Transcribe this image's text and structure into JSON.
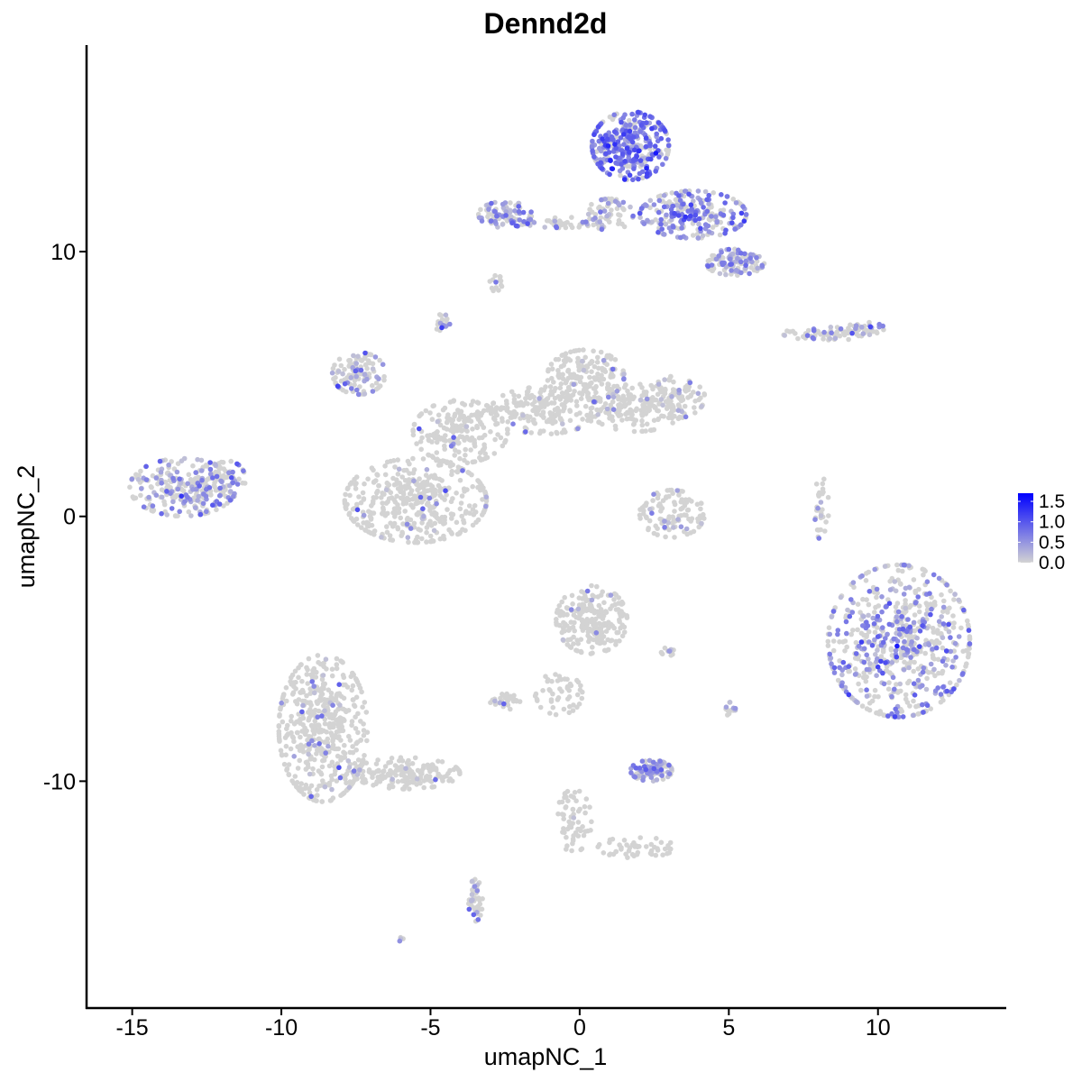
{
  "chart_data": {
    "type": "scatter",
    "title": "Dennd2d",
    "xlabel": "umapNC_1",
    "ylabel": "umapNC_2",
    "xlim": [
      -16.5,
      14.3
    ],
    "ylim": [
      -18.5,
      17.8
    ],
    "x_ticks": [
      -15,
      -10,
      -5,
      0,
      5,
      10
    ],
    "y_ticks": [
      -10,
      0,
      10
    ],
    "x_tick_labels": [
      "-15",
      "-10",
      "-5",
      "0",
      "5",
      "10"
    ],
    "y_tick_labels": [
      "-10",
      "0",
      "10"
    ],
    "legend": {
      "position": "right",
      "type": "colorbar",
      "values": [
        0.0,
        0.5,
        1.0,
        1.5
      ],
      "labels": [
        "0.0",
        "0.5",
        "1.0",
        "1.5"
      ],
      "min": 0.0,
      "max": 1.7,
      "color_low": "#d3d3d3",
      "color_high": "#0000ff"
    },
    "grid": false,
    "clusters": [
      {
        "cx": 1.7,
        "cy": 14.0,
        "rx": 1.3,
        "ry": 1.3,
        "n": 330,
        "expr_frac": 0.75,
        "expr_mean": 0.75
      },
      {
        "cx": 3.8,
        "cy": 11.4,
        "rx": 1.8,
        "ry": 0.9,
        "n": 230,
        "expr_frac": 0.6,
        "expr_mean": 0.6
      },
      {
        "cx": 5.2,
        "cy": 9.6,
        "rx": 1.0,
        "ry": 0.5,
        "n": 110,
        "expr_frac": 0.5,
        "expr_mean": 0.45
      },
      {
        "cx": -2.5,
        "cy": 11.4,
        "rx": 0.9,
        "ry": 0.5,
        "n": 90,
        "expr_frac": 0.55,
        "expr_mean": 0.45
      },
      {
        "cx": -0.6,
        "cy": 11.1,
        "rx": 1.3,
        "ry": 0.2,
        "n": 50,
        "expr_frac": 0.35,
        "expr_mean": 0.4
      },
      {
        "cx": 1.0,
        "cy": 11.4,
        "rx": 0.8,
        "ry": 0.6,
        "n": 60,
        "expr_frac": 0.4,
        "expr_mean": 0.4
      },
      {
        "cx": -2.8,
        "cy": 8.8,
        "rx": 0.25,
        "ry": 0.3,
        "n": 15,
        "expr_frac": 0.05,
        "expr_mean": 0.3
      },
      {
        "cx": 8.3,
        "cy": 6.9,
        "rx": 1.5,
        "ry": 0.25,
        "n": 60,
        "expr_frac": 0.15,
        "expr_mean": 0.4
      },
      {
        "cx": 9.6,
        "cy": 7.1,
        "rx": 0.6,
        "ry": 0.3,
        "n": 30,
        "expr_frac": 0.2,
        "expr_mean": 0.4
      },
      {
        "cx": -13.3,
        "cy": 1.1,
        "rx": 1.8,
        "ry": 1.1,
        "n": 260,
        "expr_frac": 0.32,
        "expr_mean": 0.45
      },
      {
        "cx": -11.8,
        "cy": 1.4,
        "rx": 0.6,
        "ry": 0.7,
        "n": 50,
        "expr_frac": 0.3,
        "expr_mean": 0.45
      },
      {
        "cx": -7.4,
        "cy": 5.4,
        "rx": 0.9,
        "ry": 0.8,
        "n": 110,
        "expr_frac": 0.3,
        "expr_mean": 0.45
      },
      {
        "cx": -4.6,
        "cy": 7.3,
        "rx": 0.25,
        "ry": 0.35,
        "n": 20,
        "expr_frac": 0.3,
        "expr_mean": 0.4
      },
      {
        "cx": -5.5,
        "cy": 0.6,
        "rx": 2.4,
        "ry": 1.6,
        "n": 420,
        "expr_frac": 0.05,
        "expr_mean": 0.4
      },
      {
        "cx": -4.0,
        "cy": 3.2,
        "rx": 1.6,
        "ry": 1.2,
        "n": 200,
        "expr_frac": 0.04,
        "expr_mean": 0.4
      },
      {
        "cx": -1.2,
        "cy": 4.0,
        "rx": 1.8,
        "ry": 0.9,
        "n": 190,
        "expr_frac": 0.04,
        "expr_mean": 0.4
      },
      {
        "cx": 0.2,
        "cy": 5.3,
        "rx": 1.3,
        "ry": 1.0,
        "n": 160,
        "expr_frac": 0.05,
        "expr_mean": 0.4
      },
      {
        "cx": 1.9,
        "cy": 4.1,
        "rx": 1.6,
        "ry": 0.9,
        "n": 160,
        "expr_frac": 0.07,
        "expr_mean": 0.4
      },
      {
        "cx": 3.2,
        "cy": 4.5,
        "rx": 1.0,
        "ry": 0.8,
        "n": 90,
        "expr_frac": 0.1,
        "expr_mean": 0.4
      },
      {
        "cx": 3.1,
        "cy": 0.1,
        "rx": 1.1,
        "ry": 0.9,
        "n": 110,
        "expr_frac": 0.14,
        "expr_mean": 0.4
      },
      {
        "cx": 8.1,
        "cy": 0.3,
        "rx": 0.25,
        "ry": 1.2,
        "n": 30,
        "expr_frac": 0.15,
        "expr_mean": 0.4
      },
      {
        "cx": 10.7,
        "cy": -4.7,
        "rx": 2.4,
        "ry": 2.9,
        "n": 650,
        "expr_frac": 0.4,
        "expr_mean": 0.5
      },
      {
        "cx": 0.4,
        "cy": -3.9,
        "rx": 1.2,
        "ry": 1.3,
        "n": 240,
        "expr_frac": 0.03,
        "expr_mean": 0.4
      },
      {
        "cx": -0.7,
        "cy": -6.7,
        "rx": 0.8,
        "ry": 0.8,
        "n": 50,
        "expr_frac": 0.03,
        "expr_mean": 0.4
      },
      {
        "cx": -2.5,
        "cy": -7.0,
        "rx": 0.5,
        "ry": 0.3,
        "n": 30,
        "expr_frac": 0.15,
        "expr_mean": 0.4
      },
      {
        "cx": 3.0,
        "cy": -5.1,
        "rx": 0.3,
        "ry": 0.15,
        "n": 10,
        "expr_frac": 0.2,
        "expr_mean": 0.4
      },
      {
        "cx": 5.1,
        "cy": -7.3,
        "rx": 0.2,
        "ry": 0.3,
        "n": 12,
        "expr_frac": 0.3,
        "expr_mean": 0.4
      },
      {
        "cx": 2.4,
        "cy": -9.6,
        "rx": 0.7,
        "ry": 0.4,
        "n": 100,
        "expr_frac": 0.6,
        "expr_mean": 0.5
      },
      {
        "cx": -8.6,
        "cy": -8.0,
        "rx": 1.5,
        "ry": 2.8,
        "n": 480,
        "expr_frac": 0.07,
        "expr_mean": 0.4
      },
      {
        "cx": -5.8,
        "cy": -9.7,
        "rx": 1.8,
        "ry": 0.6,
        "n": 170,
        "expr_frac": 0.03,
        "expr_mean": 0.4
      },
      {
        "cx": -3.5,
        "cy": -14.5,
        "rx": 0.25,
        "ry": 0.8,
        "n": 50,
        "expr_frac": 0.35,
        "expr_mean": 0.4
      },
      {
        "cx": -0.2,
        "cy": -11.5,
        "rx": 0.6,
        "ry": 1.2,
        "n": 60,
        "expr_frac": 0.02,
        "expr_mean": 0.4
      },
      {
        "cx": 1.9,
        "cy": -12.5,
        "rx": 1.3,
        "ry": 0.4,
        "n": 50,
        "expr_frac": 0.02,
        "expr_mean": 0.4
      },
      {
        "cx": -6.0,
        "cy": -16.0,
        "rx": 0.1,
        "ry": 0.1,
        "n": 4,
        "expr_frac": 0.5,
        "expr_mean": 0.4
      }
    ]
  }
}
